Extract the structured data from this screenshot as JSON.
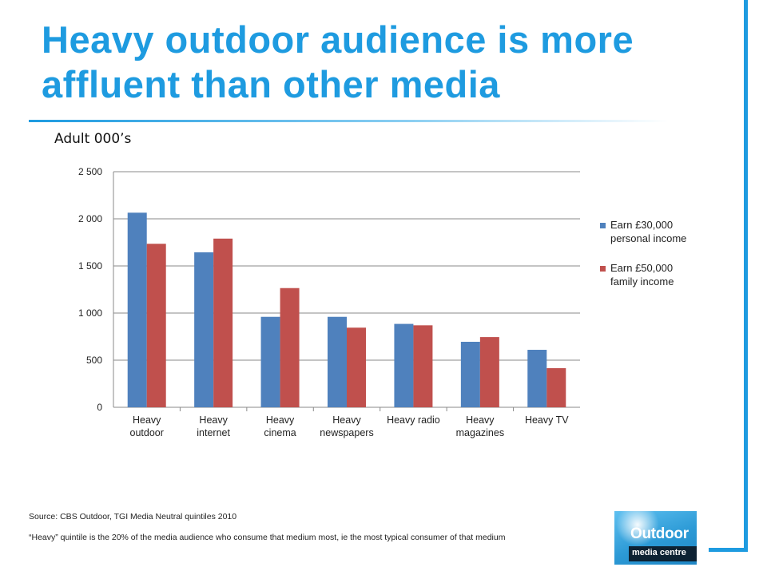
{
  "slide": {
    "title": "Heavy outdoor audience is more affluent than other media",
    "subtitle": "Adult 000’s",
    "source": "Source: CBS Outdoor, TGI Media Neutral quintiles 2010",
    "note": "“Heavy” quintile is the 20% of the media audience who consume that medium most, ie the most typical consumer of that medium",
    "logo": {
      "line1": "Outdoor",
      "line2": "media centre"
    },
    "colors": {
      "accent": "#1e9be0",
      "series1": "#4f81bd",
      "series2": "#c0504d"
    }
  },
  "chart_data": {
    "type": "bar",
    "categories": [
      [
        "Heavy",
        "outdoor"
      ],
      [
        "Heavy",
        "internet"
      ],
      [
        "Heavy",
        "cinema"
      ],
      [
        "Heavy",
        "newspapers"
      ],
      [
        "Heavy radio"
      ],
      [
        "Heavy",
        "magazines"
      ],
      [
        "Heavy TV"
      ]
    ],
    "series": [
      {
        "name": [
          "Earn £30,000",
          "personal income"
        ],
        "color": "#4f81bd",
        "values": [
          2065,
          1645,
          960,
          960,
          885,
          695,
          610
        ]
      },
      {
        "name": [
          "Earn £50,000",
          "family income"
        ],
        "color": "#c0504d",
        "values": [
          1735,
          1790,
          1265,
          845,
          870,
          745,
          415
        ]
      }
    ],
    "ylim": [
      0,
      2500
    ],
    "yticks": [
      0,
      500,
      1000,
      1500,
      2000,
      2500
    ],
    "ytick_labels": [
      "0",
      "500",
      "1 000",
      "1 500",
      "2 000",
      "2 500"
    ],
    "grid": true,
    "legend_position": "right"
  }
}
